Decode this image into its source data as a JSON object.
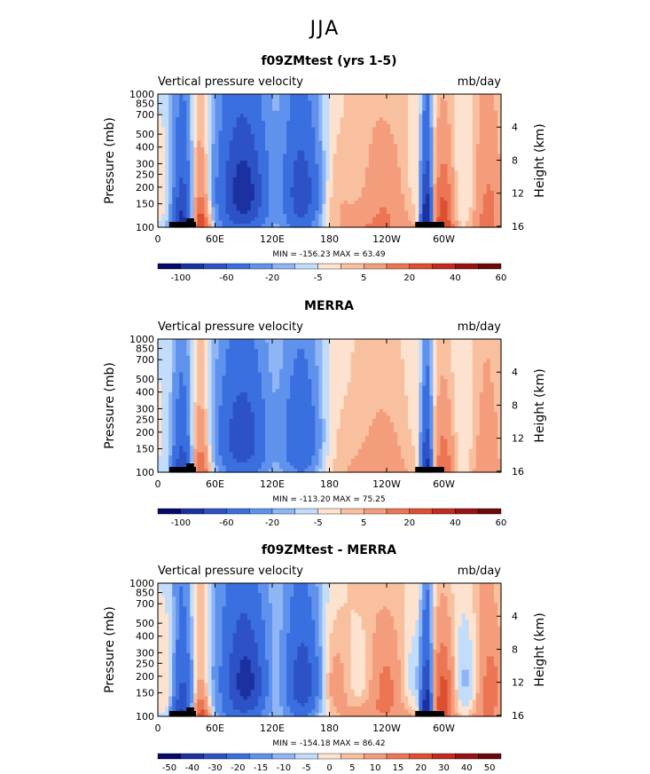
{
  "page": {
    "title": "JJA"
  },
  "palette": {
    "colors": [
      "#08086b",
      "#1c31a0",
      "#2c52c6",
      "#3a6fe0",
      "#5f92ed",
      "#8fb5f5",
      "#c2dcfb",
      "#fde3cf",
      "#f9c0a0",
      "#f49d7c",
      "#ec7654",
      "#de4f31",
      "#c42a1d",
      "#981313",
      "#6b0909"
    ]
  },
  "panels": [
    {
      "title": "f09ZMtest (yrs 1-5)",
      "variable_label": "Vertical pressure velocity",
      "units_label": "mb/day",
      "y_axis_title": "Pressure (mb)",
      "right_axis_title": "Height (km)",
      "stats": "MIN = -156.23   MAX =  63.49",
      "pressure_ticks": [
        "100",
        "150",
        "200",
        "250",
        "300",
        "400",
        "500",
        "700",
        "850",
        "1000"
      ],
      "height_ticks": [
        "16",
        "12",
        "8",
        "4"
      ],
      "longitude_ticks": [
        "0",
        "60E",
        "120E",
        "180",
        "120W",
        "60W"
      ],
      "colorbar_labels": [
        "-100",
        "-60",
        "-20",
        "-5",
        "5",
        "20",
        "40",
        "60"
      ],
      "scale": 50,
      "shift": 0.3
    },
    {
      "title": "MERRA",
      "variable_label": "Vertical pressure velocity",
      "units_label": "mb/day",
      "y_axis_title": "Pressure (mb)",
      "right_axis_title": "Height (km)",
      "stats": "MIN = -113.20   MAX =  75.25",
      "pressure_ticks": [
        "100",
        "150",
        "200",
        "250",
        "300",
        "400",
        "500",
        "700",
        "850",
        "1000"
      ],
      "height_ticks": [
        "16",
        "12",
        "8",
        "4"
      ],
      "longitude_ticks": [
        "0",
        "60E",
        "120E",
        "180",
        "120W",
        "60W"
      ],
      "colorbar_labels": [
        "-100",
        "-60",
        "-20",
        "-5",
        "5",
        "20",
        "40",
        "60"
      ],
      "scale": 38,
      "shift": 0.1
    },
    {
      "title": "f09ZMtest - MERRA",
      "variable_label": "Vertical pressure velocity",
      "units_label": "mb/day",
      "y_axis_title": "Pressure (mb)",
      "right_axis_title": "Height (km)",
      "stats": "MIN = -154.18   MAX =  86.42",
      "pressure_ticks": [
        "100",
        "150",
        "200",
        "250",
        "300",
        "400",
        "500",
        "700",
        "850",
        "1000"
      ],
      "height_ticks": [
        "16",
        "12",
        "8",
        "4"
      ],
      "longitude_ticks": [
        "0",
        "60E",
        "120E",
        "180",
        "120W",
        "60W"
      ],
      "colorbar_labels": [
        "-50",
        "-40",
        "-30",
        "-20",
        "-15",
        "-10",
        "-5",
        "0",
        "5",
        "10",
        "15",
        "20",
        "30",
        "40",
        "50"
      ],
      "scale": 45,
      "shift": 0.8
    }
  ],
  "chart_data": [
    {
      "type": "heatmap",
      "title": "f09ZMtest (yrs 1-5)",
      "xlabel": "",
      "ylabel": "Pressure (mb)",
      "y2label": "Height (km)",
      "x_range": [
        0,
        360
      ],
      "y_range": [
        1000,
        100
      ],
      "min": -156.23,
      "max": 63.49
    },
    {
      "type": "heatmap",
      "title": "MERRA",
      "xlabel": "",
      "ylabel": "Pressure (mb)",
      "y2label": "Height (km)",
      "x_range": [
        0,
        360
      ],
      "y_range": [
        1000,
        100
      ],
      "min": -113.2,
      "max": 75.25
    },
    {
      "type": "heatmap",
      "title": "f09ZMtest - MERRA",
      "xlabel": "",
      "ylabel": "Pressure (mb)",
      "y2label": "Height (km)",
      "x_range": [
        0,
        360
      ],
      "y_range": [
        1000,
        100
      ],
      "min": -154.18,
      "max": 86.42
    }
  ]
}
